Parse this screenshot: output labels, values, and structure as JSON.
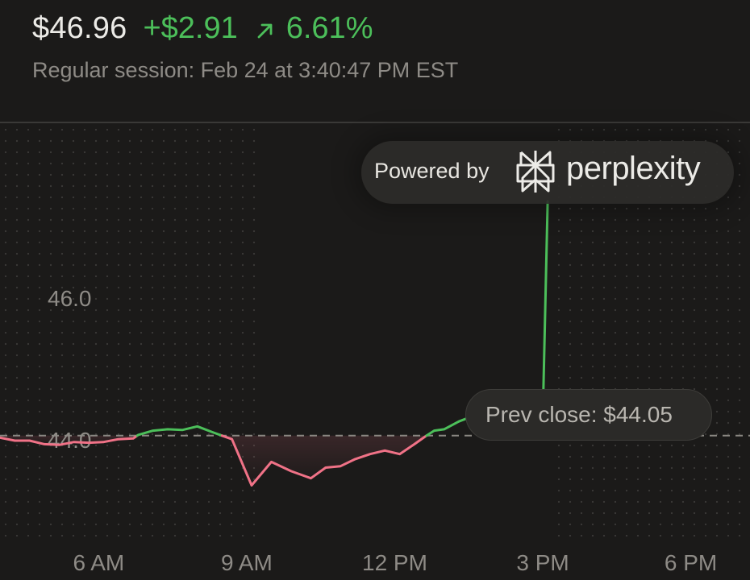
{
  "quote": {
    "price": "$46.96",
    "change": "+$2.91",
    "change_percent": "6.61%",
    "direction_icon": "arrow-up-right-icon",
    "session_text": "Regular session: Feb 24 at 3:40:47 PM EST"
  },
  "branding": {
    "powered_by": "Powered by",
    "brand_name": "perplexity",
    "logo_icon": "perplexity-logo-icon"
  },
  "colors": {
    "up": "#4cbf5a",
    "down": "#f07287",
    "grid_dot": "#3b3a38",
    "prev_close_line": "#8a8782",
    "axis_label": "#8e8b86"
  },
  "chart_data": {
    "type": "line",
    "title": "",
    "xlabel": "",
    "ylabel": "",
    "x_ticks": [
      {
        "label": "6 AM",
        "hour": 6
      },
      {
        "label": "9 AM",
        "hour": 9
      },
      {
        "label": "12 PM",
        "hour": 12
      },
      {
        "label": "3 PM",
        "hour": 15
      },
      {
        "label": "6 PM",
        "hour": 18
      }
    ],
    "y_ticks": [
      {
        "label": "46.0",
        "value": 46.0
      },
      {
        "label": "44.0",
        "value": 44.0
      }
    ],
    "ylim": [
      42.55,
      48.45
    ],
    "xlim": [
      4,
      19.2
    ],
    "prev_close": 44.05,
    "prev_close_label": "Prev close: $44.05",
    "grid": "dotted",
    "series": [
      {
        "x": [
          4.0,
          4.3,
          4.6,
          4.9,
          5.2,
          5.5,
          5.8,
          6.1,
          6.4,
          6.7,
          6.8,
          7.1,
          7.4,
          7.7,
          8.0,
          8.3,
          8.7,
          9.1,
          9.5,
          9.9,
          10.3,
          10.6,
          10.9,
          11.2,
          11.5,
          11.8,
          12.1,
          12.4,
          12.6,
          12.8,
          13.0,
          13.3,
          13.6,
          13.9,
          14.2,
          14.4,
          14.5,
          14.7,
          14.8,
          15.0,
          15.1
        ],
        "y": [
          44.02,
          43.98,
          43.98,
          43.93,
          43.92,
          43.96,
          43.95,
          43.96,
          44.0,
          44.01,
          44.06,
          44.12,
          44.14,
          44.13,
          44.18,
          44.1,
          44.0,
          43.35,
          43.68,
          43.55,
          43.45,
          43.6,
          43.62,
          43.72,
          43.79,
          43.84,
          43.79,
          43.93,
          44.03,
          44.12,
          44.14,
          44.25,
          44.33,
          44.36,
          44.32,
          44.33,
          44.27,
          44.23,
          44.26,
          44.28,
          47.35
        ]
      }
    ]
  }
}
